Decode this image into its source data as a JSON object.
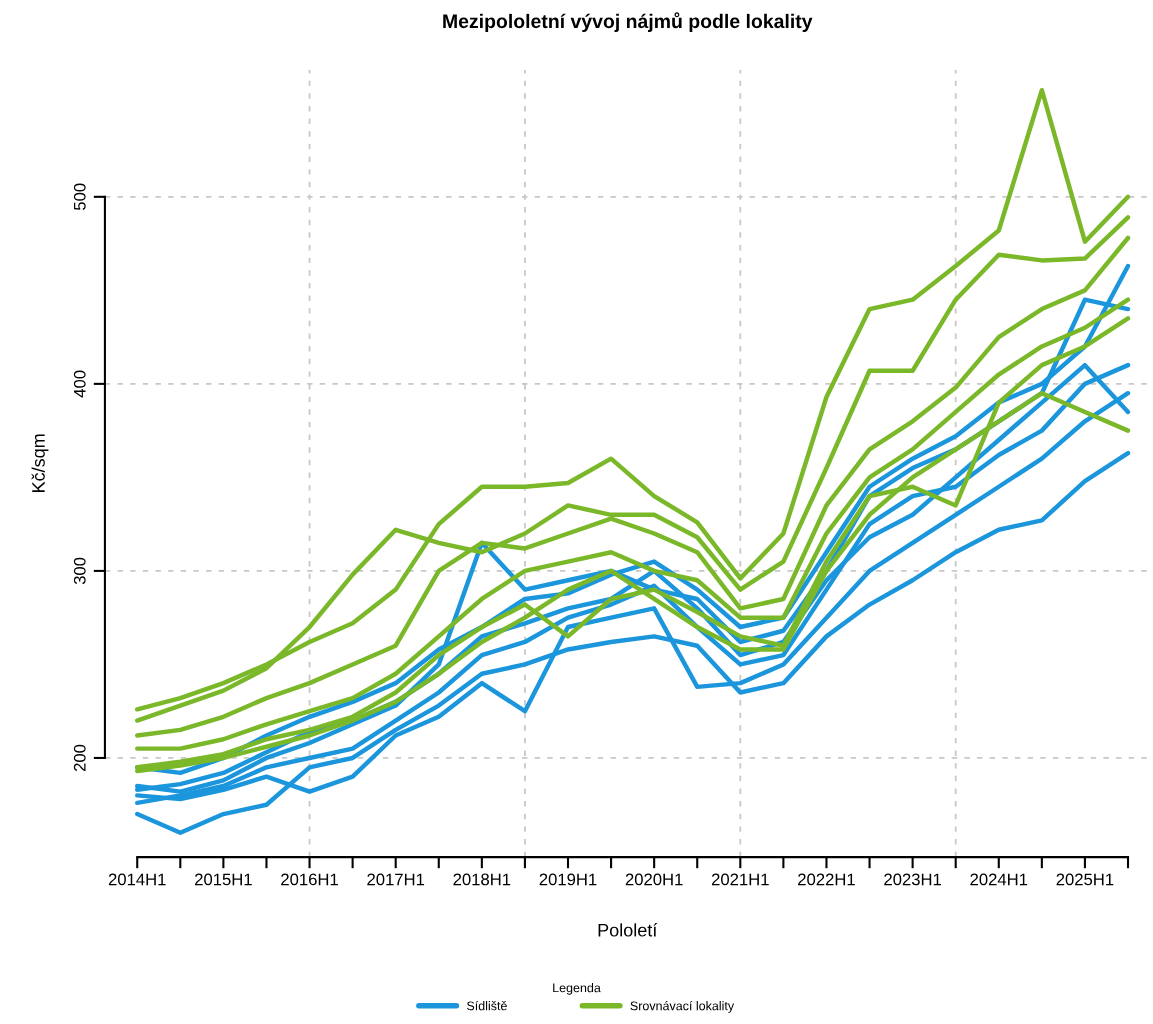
{
  "chart_data": {
    "type": "line",
    "title": "Mezipololetní vývoj nájmů podle lokality",
    "xlabel": "Pololetí",
    "ylabel": "Kč/sqm",
    "legend_title": "Legenda",
    "categories": [
      "2014H1",
      null,
      "2015H1",
      null,
      "2016H1",
      null,
      "2017H1",
      null,
      "2018H1",
      null,
      "2019H1",
      null,
      "2020H1",
      null,
      "2021H1",
      null,
      "2022H1",
      null,
      "2023H1",
      null,
      "2024H1",
      null,
      "2025H1",
      null
    ],
    "ylim": [
      147,
      568
    ],
    "yticks": [
      200,
      300,
      400,
      500
    ],
    "grid": true,
    "legend": "bottom",
    "line_style": "solid",
    "marker": "none",
    "series": [
      {
        "name": "Sídliště",
        "color": "#1b96dc",
        "values": [
          170,
          160,
          170,
          175,
          195,
          200,
          215,
          228,
          245,
          250,
          258,
          262,
          265,
          260,
          235,
          240,
          265,
          282,
          295,
          310,
          322,
          327,
          348,
          363
        ]
      },
      {
        "color": "#1b96dc",
        "values": [
          180,
          178,
          183,
          190,
          182,
          190,
          212,
          222,
          240,
          225,
          270,
          275,
          280,
          238,
          240,
          250,
          275,
          300,
          315,
          330,
          345,
          360,
          380,
          395
        ]
      },
      {
        "color": "#1b96dc",
        "values": [
          185,
          182,
          188,
          200,
          208,
          218,
          228,
          250,
          315,
          290,
          295,
          300,
          290,
          285,
          262,
          268,
          300,
          340,
          355,
          365,
          380,
          395,
          445,
          440
        ]
      },
      {
        "color": "#1b96dc",
        "values": [
          195,
          192,
          200,
          212,
          222,
          230,
          240,
          258,
          270,
          285,
          288,
          298,
          305,
          290,
          270,
          275,
          310,
          345,
          360,
          372,
          390,
          400,
          420,
          463
        ]
      },
      {
        "color": "#1b96dc",
        "values": [
          176,
          180,
          185,
          195,
          200,
          205,
          220,
          235,
          255,
          262,
          275,
          282,
          292,
          270,
          250,
          255,
          290,
          325,
          340,
          345,
          362,
          375,
          400,
          410
        ]
      },
      {
        "color": "#1b96dc",
        "values": [
          183,
          186,
          192,
          203,
          214,
          220,
          230,
          245,
          265,
          272,
          280,
          285,
          300,
          280,
          255,
          262,
          295,
          318,
          330,
          350,
          370,
          390,
          410,
          385
        ]
      },
      {
        "name": "Srovnávací lokality",
        "color": "#7ab829",
        "values": [
          226,
          232,
          240,
          250,
          262,
          272,
          290,
          325,
          345,
          345,
          347,
          360,
          340,
          326,
          296,
          320,
          393,
          440,
          445,
          463,
          482,
          557,
          476,
          500
        ]
      },
      {
        "color": "#7ab829",
        "values": [
          220,
          228,
          236,
          248,
          270,
          298,
          322,
          315,
          310,
          320,
          335,
          330,
          330,
          318,
          290,
          305,
          355,
          407,
          407,
          445,
          469,
          466,
          467,
          489
        ]
      },
      {
        "color": "#7ab829",
        "values": [
          212,
          215,
          222,
          232,
          240,
          250,
          260,
          300,
          315,
          312,
          320,
          328,
          320,
          310,
          280,
          285,
          335,
          365,
          380,
          398,
          425,
          440,
          450,
          478
        ]
      },
      {
        "color": "#7ab829",
        "values": [
          205,
          205,
          210,
          218,
          225,
          232,
          245,
          265,
          285,
          300,
          305,
          310,
          300,
          295,
          275,
          275,
          320,
          350,
          365,
          385,
          405,
          420,
          430,
          445
        ]
      },
      {
        "color": "#7ab829",
        "values": [
          195,
          198,
          202,
          210,
          215,
          222,
          235,
          255,
          270,
          282,
          265,
          285,
          290,
          278,
          265,
          260,
          305,
          340,
          345,
          335,
          390,
          410,
          420,
          435
        ]
      },
      {
        "color": "#7ab829",
        "values": [
          193,
          196,
          200,
          206,
          212,
          220,
          230,
          245,
          262,
          275,
          290,
          300,
          285,
          270,
          258,
          258,
          300,
          330,
          350,
          365,
          380,
          395,
          385,
          375
        ]
      }
    ]
  }
}
